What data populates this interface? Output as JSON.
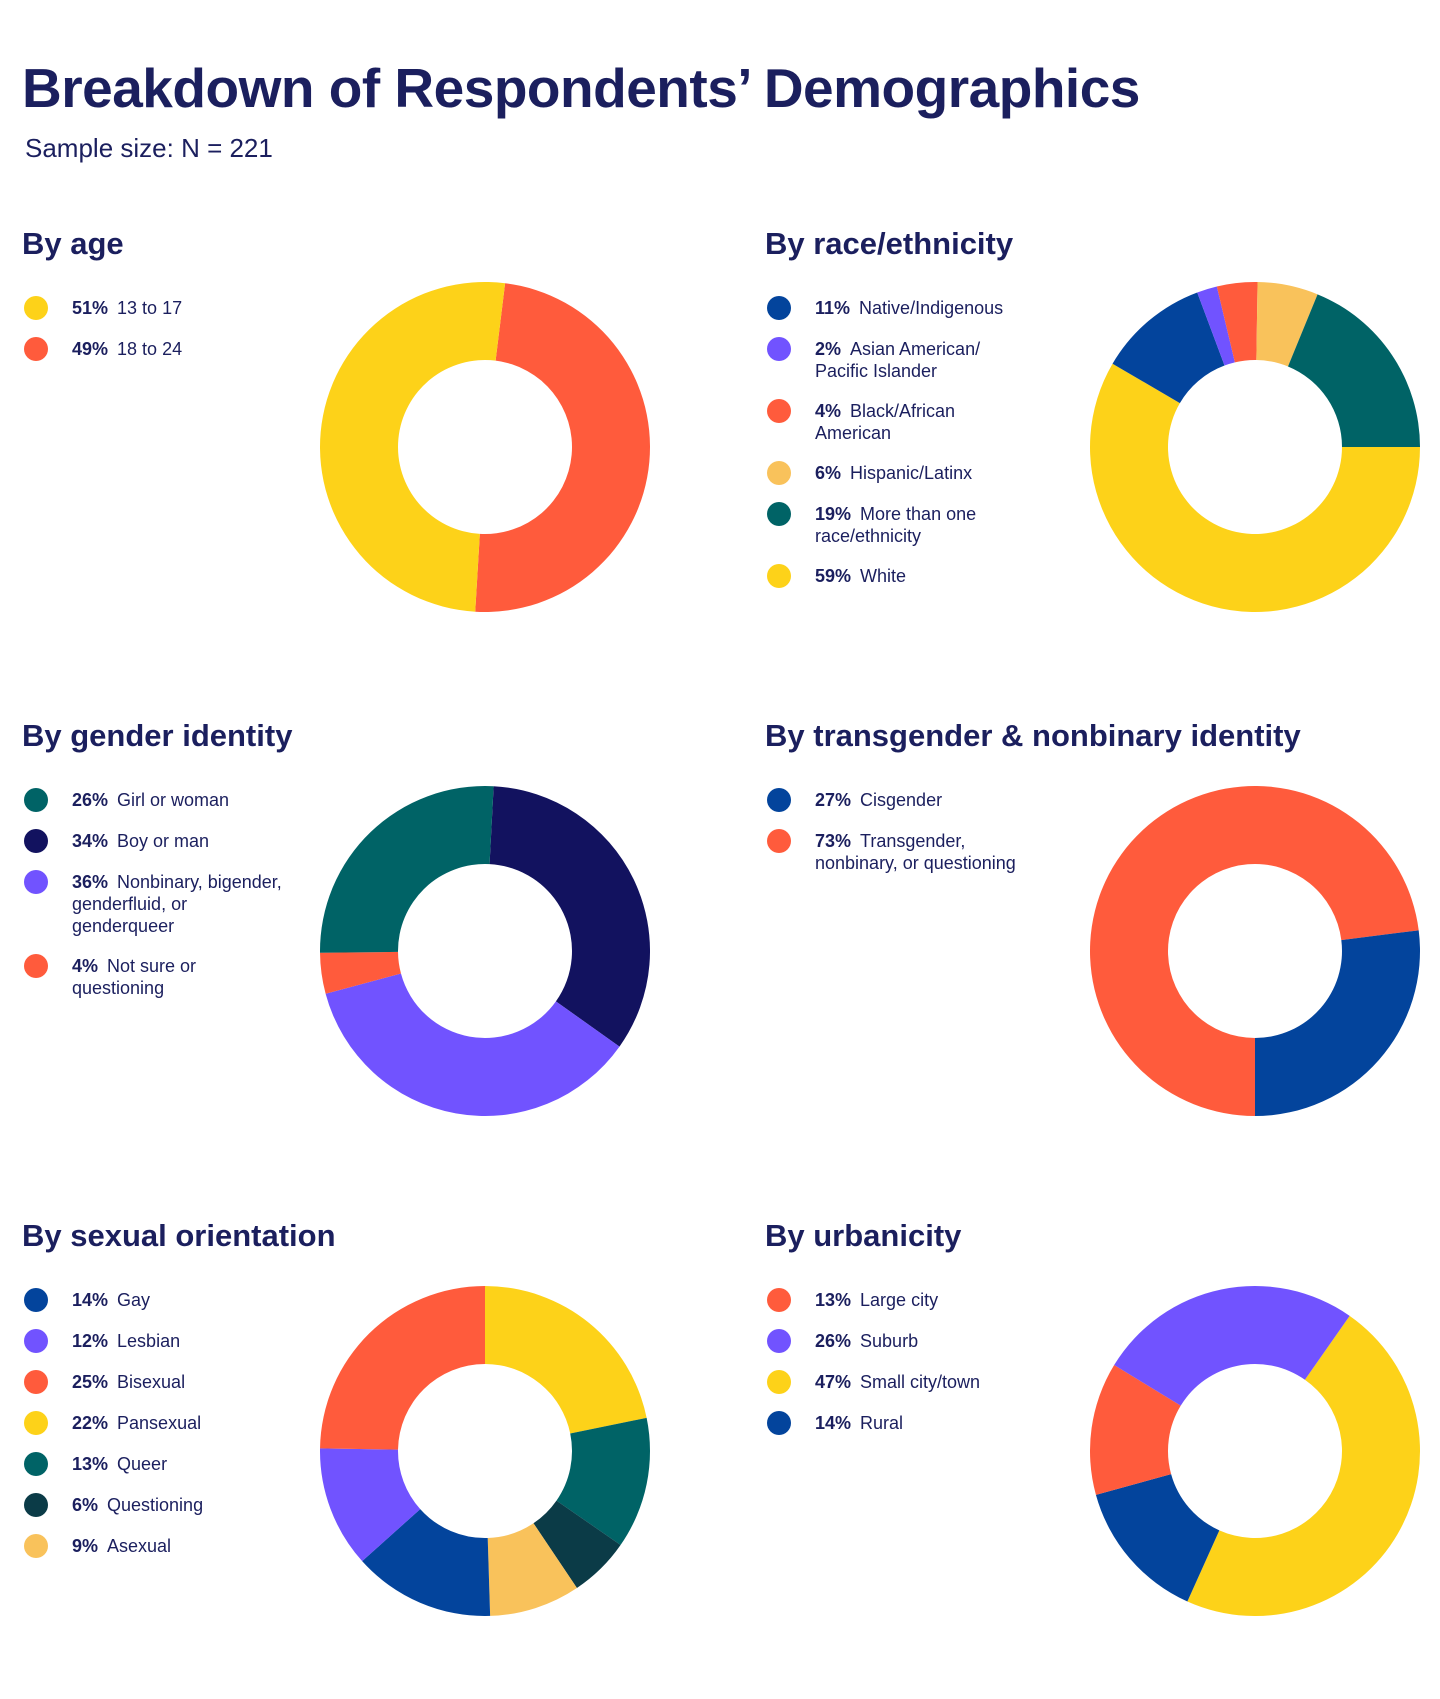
{
  "title": "Breakdown of Respondents’ Demographics",
  "subtitle": "Sample size: N = 221",
  "colors": {
    "yellow": "#fdd219",
    "red": "#ff5b3c",
    "navy": "#12125f",
    "blue": "#03449c",
    "purple": "#7153ff",
    "teal": "#006366",
    "darkteal": "#0b3b47",
    "peach": "#f9c25b"
  },
  "chart_data": [
    {
      "type": "pie",
      "title": "By age",
      "categories": [
        "13 to 17",
        "18 to 24"
      ],
      "labels": [
        "51%",
        "49%"
      ],
      "values": [
        51,
        49
      ],
      "colors": [
        "#fdd219",
        "#ff5b3c"
      ],
      "drawing_order": [
        1,
        0
      ]
    },
    {
      "type": "pie",
      "title": "By race/ethnicity",
      "categories": [
        "Native/Indigenous",
        "Asian American/ Pacific Islander",
        "Black/African American",
        "Hispanic/Latinx",
        "More than one race/ethnicity",
        "White"
      ],
      "labels": [
        "11%",
        "2%",
        "4%",
        "6%",
        "19%",
        "59%"
      ],
      "values": [
        11,
        2,
        4,
        6,
        19,
        59
      ],
      "colors": [
        "#03449c",
        "#7153ff",
        "#ff5b3c",
        "#f9c25b",
        "#006366",
        "#fdd219"
      ],
      "drawing_order": [
        5,
        0,
        1,
        2,
        3,
        4
      ]
    },
    {
      "type": "pie",
      "title": "By gender identity",
      "categories": [
        "Girl or woman",
        "Boy or man",
        "Nonbinary, bigender, genderfluid, or genderqueer",
        "Not sure or questioning"
      ],
      "labels": [
        "26%",
        "34%",
        "36%",
        "4%"
      ],
      "values": [
        26,
        34,
        36,
        4
      ],
      "colors": [
        "#006366",
        "#12125f",
        "#7153ff",
        "#ff5b3c"
      ],
      "drawing_order": [
        1,
        2,
        3,
        0
      ]
    },
    {
      "type": "pie",
      "title": "By transgender & nonbinary identity",
      "categories": [
        "Cisgender",
        "Transgender, nonbinary, or questioning"
      ],
      "labels": [
        "27%",
        "73%"
      ],
      "values": [
        27,
        73
      ],
      "colors": [
        "#03449c",
        "#ff5b3c"
      ],
      "drawing_order": [
        1,
        0
      ]
    },
    {
      "type": "pie",
      "title": "By sexual orientation",
      "categories": [
        "Gay",
        "Lesbian",
        "Bisexual",
        "Pansexual",
        "Queer",
        "Questioning",
        "Asexual"
      ],
      "labels": [
        "14%",
        "12%",
        "25%",
        "22%",
        "13%",
        "6%",
        "9%"
      ],
      "values": [
        14,
        12,
        25,
        22,
        13,
        6,
        9
      ],
      "colors": [
        "#03449c",
        "#7153ff",
        "#ff5b3c",
        "#fdd219",
        "#006366",
        "#0b3b47",
        "#f9c25b"
      ],
      "drawing_order": [
        3,
        4,
        5,
        6,
        0,
        1,
        2
      ]
    },
    {
      "type": "pie",
      "title": "By urbanicity",
      "categories": [
        "Large city",
        "Suburb",
        "Small city/town",
        "Rural"
      ],
      "labels": [
        "13%",
        "26%",
        "47%",
        "14%"
      ],
      "values": [
        13,
        26,
        47,
        14
      ],
      "colors": [
        "#ff5b3c",
        "#7153ff",
        "#fdd219",
        "#03449c"
      ],
      "drawing_order": [
        2,
        3,
        0,
        1
      ]
    }
  ]
}
